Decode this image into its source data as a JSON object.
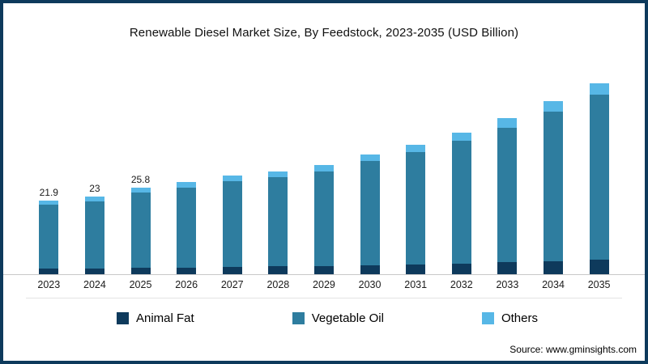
{
  "title": "Renewable Diesel Market Size, By Feedstock, 2023-2035 (USD Billion)",
  "source": "Source: www.gminsights.com",
  "colors": {
    "frame_border": "#0d3a5c",
    "animal_fat": "#0e3a5c",
    "vegetable_oil": "#2e7d9f",
    "others": "#57b7e6",
    "baseline": "#c9c9c9"
  },
  "chart_data": {
    "type": "bar",
    "stacked": true,
    "title": "Renewable Diesel Market Size, By Feedstock, 2023-2035 (USD Billion)",
    "xlabel": "",
    "ylabel": "",
    "ylim": [
      0,
      60
    ],
    "grid": false,
    "legend_position": "bottom",
    "categories": [
      "2023",
      "2024",
      "2025",
      "2026",
      "2027",
      "2028",
      "2029",
      "2030",
      "2031",
      "2032",
      "2033",
      "2034",
      "2035"
    ],
    "series": [
      {
        "name": "Animal Fat",
        "color": "#0e3a5c",
        "values": [
          1.6,
          1.7,
          1.9,
          2.0,
          2.2,
          2.3,
          2.4,
          2.7,
          2.9,
          3.2,
          3.5,
          3.9,
          4.3
        ]
      },
      {
        "name": "Vegetable Oil",
        "color": "#2e7d9f",
        "values": [
          19.0,
          19.9,
          22.4,
          23.7,
          25.4,
          26.5,
          28.1,
          30.8,
          33.3,
          36.4,
          39.9,
          44.4,
          49.0
        ]
      },
      {
        "name": "Others",
        "color": "#57b7e6",
        "values": [
          1.3,
          1.4,
          1.5,
          1.6,
          1.8,
          1.8,
          2.0,
          2.1,
          2.3,
          2.5,
          2.8,
          3.1,
          3.4
        ]
      }
    ],
    "totals": [
      21.9,
      23,
      25.8,
      27.3,
      29.4,
      30.6,
      32.5,
      35.6,
      38.5,
      42.1,
      46.2,
      51.4,
      56.7
    ],
    "bar_labels": [
      "21.9",
      "23",
      "25.8",
      null,
      null,
      null,
      null,
      null,
      null,
      null,
      null,
      null,
      null
    ]
  },
  "legend": {
    "items": [
      {
        "label": "Animal Fat",
        "color": "#0e3a5c"
      },
      {
        "label": "Vegetable Oil",
        "color": "#2e7d9f"
      },
      {
        "label": "Others",
        "color": "#57b7e6"
      }
    ]
  }
}
